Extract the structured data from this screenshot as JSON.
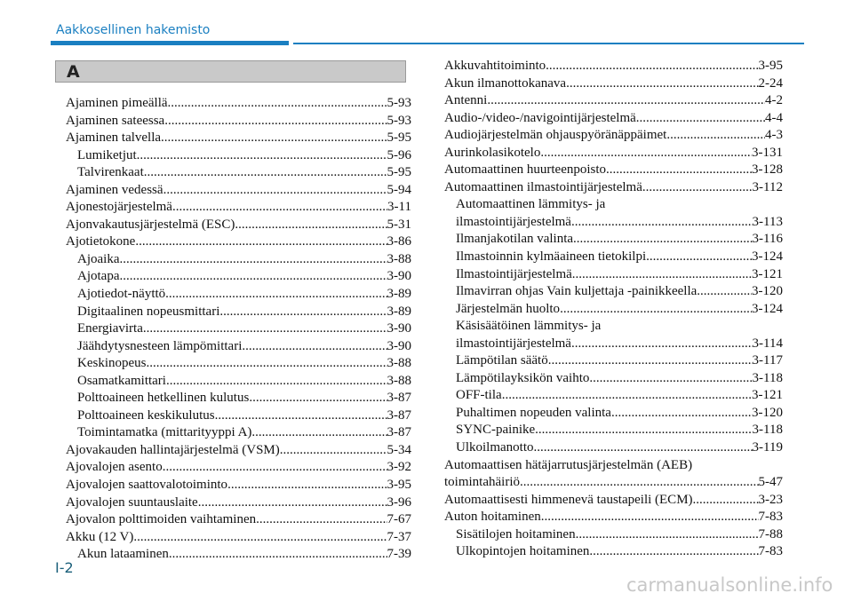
{
  "header": {
    "title": "Aakkosellinen hakemisto"
  },
  "section": "A",
  "left": [
    {
      "label": "Ajaminen pimeällä",
      "page": "5-93"
    },
    {
      "label": "Ajaminen sateessa",
      "page": "5-93"
    },
    {
      "label": "Ajaminen talvella",
      "page": "5-95",
      "subentries": [
        {
          "label": "Lumiketjut",
          "page": "5-96"
        },
        {
          "label": "Talvirenkaat",
          "page": "5-95"
        }
      ]
    },
    {
      "label": "Ajaminen vedessä",
      "page": "5-94"
    },
    {
      "label": "Ajonestojärjestelmä",
      "page": "3-11"
    },
    {
      "label": "Ajonvakautusjärjestelmä (ESC)",
      "page": "5-31"
    },
    {
      "label": "Ajotietokone",
      "page": "3-86",
      "subentries": [
        {
          "label": "Ajoaika",
          "page": "3-88"
        },
        {
          "label": "Ajotapa",
          "page": "3-90"
        },
        {
          "label": "Ajotiedot-näyttö",
          "page": "3-89"
        },
        {
          "label": "Digitaalinen nopeusmittari",
          "page": "3-89"
        },
        {
          "label": "Energiavirta",
          "page": "3-90"
        },
        {
          "label": "Jäähdytysnesteen lämpömittari",
          "page": "3-90"
        },
        {
          "label": "Keskinopeus",
          "page": "3-88"
        },
        {
          "label": "Osamatkamittari",
          "page": "3-88"
        },
        {
          "label": "Polttoaineen hetkellinen kulutus",
          "page": "3-87"
        },
        {
          "label": "Polttoaineen keskikulutus",
          "page": "3-87"
        },
        {
          "label": "Toimintamatka (mittarityyppi A)",
          "page": "3-87"
        }
      ]
    },
    {
      "label": "Ajovakauden hallintajärjestelmä (VSM)",
      "page": "5-34"
    },
    {
      "label": "Ajovalojen asento",
      "page": "3-92"
    },
    {
      "label": "Ajovalojen saattovalotoiminto",
      "page": "3-95"
    },
    {
      "label": "Ajovalojen suuntauslaite",
      "page": "3-96"
    },
    {
      "label": "Ajovalon polttimoiden vaihtaminen",
      "page": "7-67"
    },
    {
      "label": "Akku (12 V)",
      "page": "7-37",
      "subentries": [
        {
          "label": "Akun lataaminen",
          "page": "7-39"
        }
      ]
    }
  ],
  "right": [
    {
      "label": "Akkuvahtitoiminto",
      "page": "3-95"
    },
    {
      "label": "Akun ilmanottokanava",
      "page": "2-24"
    },
    {
      "label": "Antenni",
      "page": "4-2"
    },
    {
      "label": "Audio-/video-/navigointijärjestelmä",
      "page": "4-4"
    },
    {
      "label": "Audiojärjestelmän ohjauspyöränäppäimet",
      "page": "4-3"
    },
    {
      "label": "Aurinkolasikotelo",
      "page": "3-131"
    },
    {
      "label": "Automaattinen huurteenpoisto",
      "page": "3-128"
    },
    {
      "label": "Automaattinen ilmastointijärjestelmä",
      "page": "3-112",
      "subentries": [
        {
          "label": [
            "Automaattinen lämmitys- ja",
            "ilmastointijärjestelmä"
          ],
          "page": "3-113"
        },
        {
          "label": "Ilmanjakotilan valinta",
          "page": "3-116"
        },
        {
          "label": "Ilmastoinnin kylmäaineen tietokilpi",
          "page": "3-124"
        },
        {
          "label": "Ilmastointijärjestelmä",
          "page": "3-121"
        },
        {
          "label": "Ilmavirran ohjas Vain kuljettaja -painikkeella",
          "page": "3-120"
        },
        {
          "label": "Järjestelmän huolto",
          "page": "3-124"
        },
        {
          "label": [
            "Käsisäätöinen lämmitys- ja",
            "ilmastointijärjestelmä"
          ],
          "page": "3-114"
        },
        {
          "label": "Lämpötilan säätö",
          "page": "3-117"
        },
        {
          "label": "Lämpötilayksikön vaihto",
          "page": "3-118"
        },
        {
          "label": "OFF-tila",
          "page": "3-121"
        },
        {
          "label": "Puhaltimen nopeuden valinta",
          "page": "3-120"
        },
        {
          "label": "SYNC-painike",
          "page": "3-118"
        },
        {
          "label": "Ulkoilmanotto",
          "page": "3-119"
        }
      ]
    },
    {
      "label": [
        "Automaattisen hätäjarrutusjärjestelmän (AEB)",
        "toimintahäiriö"
      ],
      "page": "5-47"
    },
    {
      "label": "Automaattisesti himmenevä taustapeili (ECM)",
      "page": "3-23"
    },
    {
      "label": "Auton hoitaminen",
      "page": "7-83",
      "subentries": [
        {
          "label": "Sisätilojen hoitaminen",
          "page": "7-88"
        },
        {
          "label": "Ulkopintojen hoitaminen",
          "page": "7-83"
        }
      ]
    }
  ],
  "page_number": "I-2",
  "watermark": "carmanualsonline.info"
}
